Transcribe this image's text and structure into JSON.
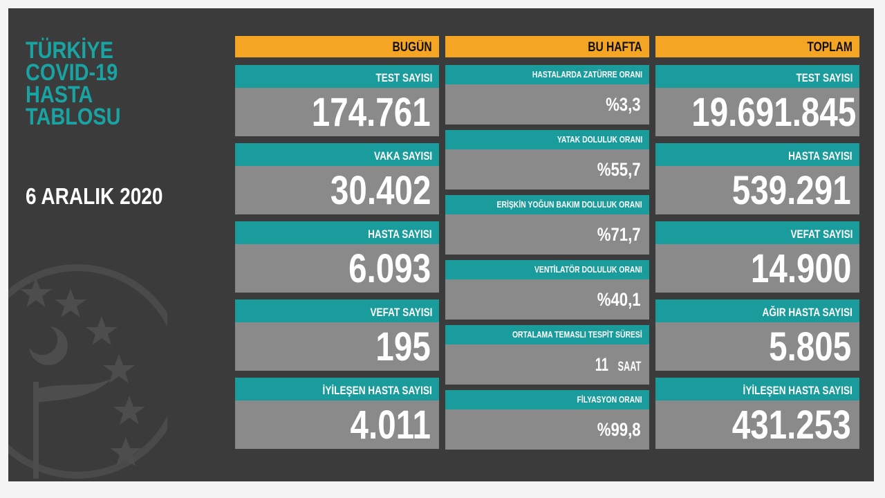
{
  "title_lines": [
    "TÜRKİYE",
    "COVID-19",
    "HASTA",
    "TABLOSU"
  ],
  "date": "6 ARALIK 2020",
  "colors": {
    "background": "#3b3b3b",
    "header": "#f5a524",
    "label": "#1a9c9c",
    "value": "#8a8a8a",
    "title": "#1aa3a3"
  },
  "today": {
    "header": "BUGÜN",
    "items": [
      {
        "label": "TEST SAYISI",
        "value": "174.761"
      },
      {
        "label": "VAKA SAYISI",
        "value": "30.402"
      },
      {
        "label": "HASTA SAYISI",
        "value": "6.093"
      },
      {
        "label": "VEFAT SAYISI",
        "value": "195"
      },
      {
        "label": "İYİLEŞEN HASTA SAYISI",
        "value": "4.011"
      }
    ]
  },
  "week": {
    "header": "BU HAFTA",
    "items": [
      {
        "label": "HASTALARDA ZATÜRRE ORANI",
        "value": "%3,3"
      },
      {
        "label": "YATAK DOLULUK ORANI",
        "value": "%55,7"
      },
      {
        "label": "ERİŞKİN YOĞUN BAKIM DOLULUK ORANI",
        "value": "%71,7"
      },
      {
        "label": "VENTİLATÖR DOLULUK ORANI",
        "value": "%40,1"
      },
      {
        "label": "ORTALAMA TEMASLI TESPİT SÜRESİ",
        "value": "11",
        "unit": "SAAT"
      },
      {
        "label": "FİLYASYON ORANI",
        "value": "%99,8"
      }
    ]
  },
  "total": {
    "header": "TOPLAM",
    "items": [
      {
        "label": "TEST SAYISI",
        "value": "19.691.845"
      },
      {
        "label": "HASTA SAYISI",
        "value": "539.291"
      },
      {
        "label": "VEFAT SAYISI",
        "value": "14.900"
      },
      {
        "label": "AĞIR HASTA SAYISI",
        "value": "5.805"
      },
      {
        "label": "İYİLEŞEN HASTA SAYISI",
        "value": "431.253"
      }
    ]
  }
}
